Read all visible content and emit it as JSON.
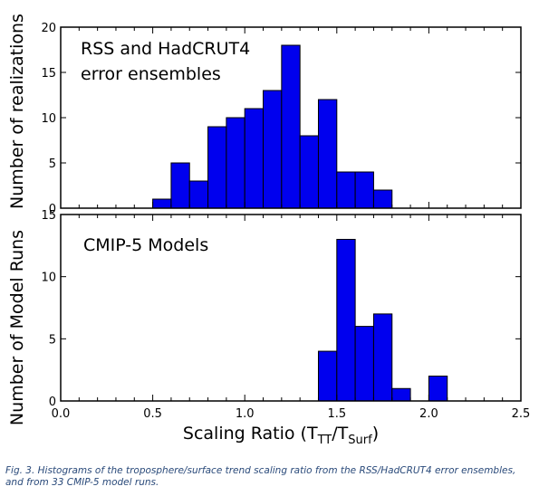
{
  "chart_data": [
    {
      "type": "bar",
      "title": "RSS and HadCRUT4 error ensembles",
      "title_lines": [
        "RSS and HadCRUT4",
        "error ensembles"
      ],
      "ylabel": "Number of realizations",
      "bin_width": 0.1,
      "bin_starts": [
        0.5,
        0.6,
        0.7,
        0.8,
        0.9,
        1.0,
        1.1,
        1.2,
        1.3,
        1.4,
        1.5,
        1.6,
        1.7
      ],
      "values": [
        1,
        5,
        3,
        9,
        10,
        11,
        13,
        18,
        8,
        12,
        4,
        4,
        2
      ],
      "xlim": [
        0,
        2.5
      ],
      "ylim": [
        0,
        20
      ],
      "yticks": [
        0,
        5,
        10,
        15,
        20
      ],
      "bar_color": "#0000ee"
    },
    {
      "type": "bar",
      "title": "CMIP-5 Models",
      "ylabel": "Number of Model Runs",
      "bin_width": 0.1,
      "bin_starts": [
        1.4,
        1.5,
        1.6,
        1.7,
        1.8,
        2.0
      ],
      "values": [
        4,
        13,
        6,
        7,
        1,
        2
      ],
      "xlim": [
        0,
        2.5
      ],
      "ylim": [
        0,
        15
      ],
      "yticks": [
        0,
        5,
        10,
        15
      ],
      "xticks": [
        "0.0",
        "0.5",
        "1.0",
        "1.5",
        "2.0",
        "2.5"
      ],
      "bar_color": "#0000ee"
    }
  ],
  "xlabel": {
    "main": "Scaling Ratio (T",
    "sub1": "TT",
    "mid": "/T",
    "sub2": "Surf",
    "end": ")"
  },
  "caption": "Fig. 3. Histograms of the troposphere/surface trend scaling ratio from the RSS/HadCRUT4 error ensembles, and from 33 CMIP-5 model runs."
}
